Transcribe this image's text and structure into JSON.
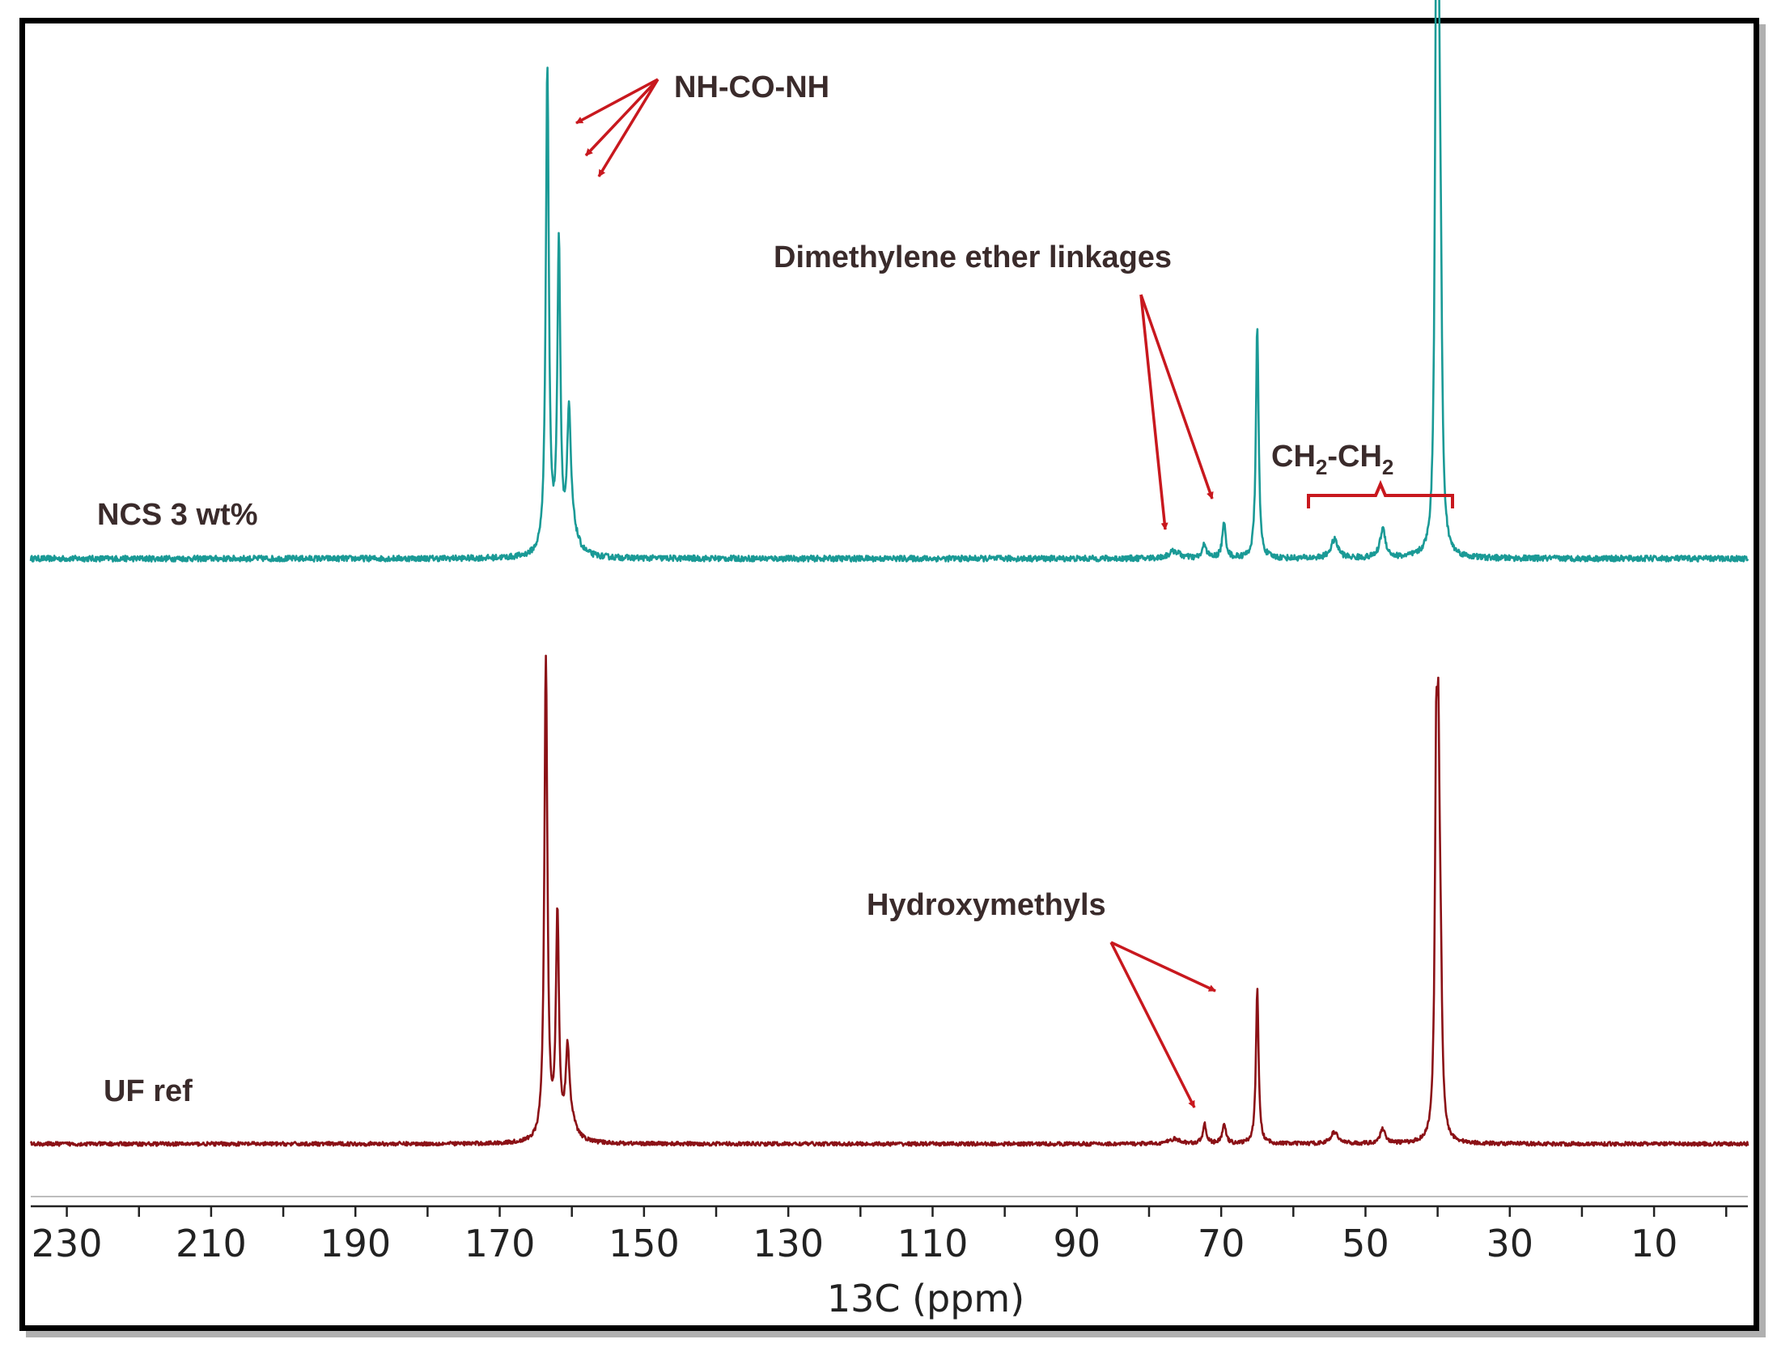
{
  "chart_data": {
    "type": "line",
    "xlabel": "13C (ppm)",
    "xlim": [
      235,
      -3
    ],
    "x_reversed": true,
    "xticks": [
      230,
      210,
      190,
      170,
      150,
      130,
      110,
      90,
      70,
      50,
      30,
      10
    ],
    "series": [
      {
        "name": "NCS 3 wt%",
        "color": "#1a9a96",
        "peaks": [
          {
            "x": 163.4,
            "h": 1.0,
            "w": 0.25
          },
          {
            "x": 161.8,
            "h": 0.63,
            "w": 0.25
          },
          {
            "x": 160.4,
            "h": 0.25,
            "w": 0.3
          },
          {
            "x": 160.0,
            "h": 0.05,
            "w": 0.9
          },
          {
            "x": 76.5,
            "h": 0.015,
            "w": 0.9
          },
          {
            "x": 72.3,
            "h": 0.03,
            "w": 0.3
          },
          {
            "x": 69.6,
            "h": 0.07,
            "w": 0.3
          },
          {
            "x": 65.0,
            "h": 0.48,
            "w": 0.22
          },
          {
            "x": 54.3,
            "h": 0.038,
            "w": 0.6
          },
          {
            "x": 47.6,
            "h": 0.06,
            "w": 0.45
          },
          {
            "x": 40.2,
            "h": 1.02,
            "w": 0.22
          },
          {
            "x": 39.9,
            "h": 0.86,
            "w": 0.2
          },
          {
            "x": 39.6,
            "h": 0.45,
            "w": 0.25
          }
        ],
        "noise": 0.006
      },
      {
        "name": "UF ref",
        "color": "#8b1116",
        "peaks": [
          {
            "x": 163.6,
            "h": 1.0,
            "w": 0.25
          },
          {
            "x": 162.0,
            "h": 0.46,
            "w": 0.25
          },
          {
            "x": 160.6,
            "h": 0.16,
            "w": 0.3
          },
          {
            "x": 160.2,
            "h": 0.04,
            "w": 0.9
          },
          {
            "x": 76.5,
            "h": 0.01,
            "w": 0.9
          },
          {
            "x": 72.3,
            "h": 0.04,
            "w": 0.3
          },
          {
            "x": 69.6,
            "h": 0.04,
            "w": 0.3
          },
          {
            "x": 65.0,
            "h": 0.32,
            "w": 0.22
          },
          {
            "x": 54.3,
            "h": 0.024,
            "w": 0.6
          },
          {
            "x": 47.6,
            "h": 0.03,
            "w": 0.45
          },
          {
            "x": 40.2,
            "h": 0.7,
            "w": 0.22
          },
          {
            "x": 39.9,
            "h": 0.6,
            "w": 0.2
          },
          {
            "x": 39.6,
            "h": 0.28,
            "w": 0.25
          }
        ],
        "noise": 0.004
      }
    ],
    "annotations": [
      {
        "text": "NH-CO-NH",
        "points_to": [
          164,
          162,
          160
        ]
      },
      {
        "text": "Dimethylene ether linkages",
        "points_to": [
          76.5,
          69.5
        ]
      },
      {
        "text": "CH2-CH2",
        "range": [
          57,
          46
        ]
      },
      {
        "text": "Hydroxymethyls",
        "points_to": [
          72,
          69
        ]
      }
    ],
    "grid": false
  },
  "labels": {
    "ncs": "NCS 3 wt%",
    "uf": "UF ref",
    "nhconh": "NH-CO-NH",
    "dimethylene": "Dimethylene ether linkages",
    "ch2_main1": "CH",
    "ch2_sub1": "2",
    "ch2_mid": "-CH",
    "ch2_sub2": "2",
    "hydroxymethyls": "Hydroxymethyls"
  },
  "colors": {
    "arrow": "#c8181e",
    "teal": "#1a9a96",
    "darkred": "#8b1116"
  }
}
